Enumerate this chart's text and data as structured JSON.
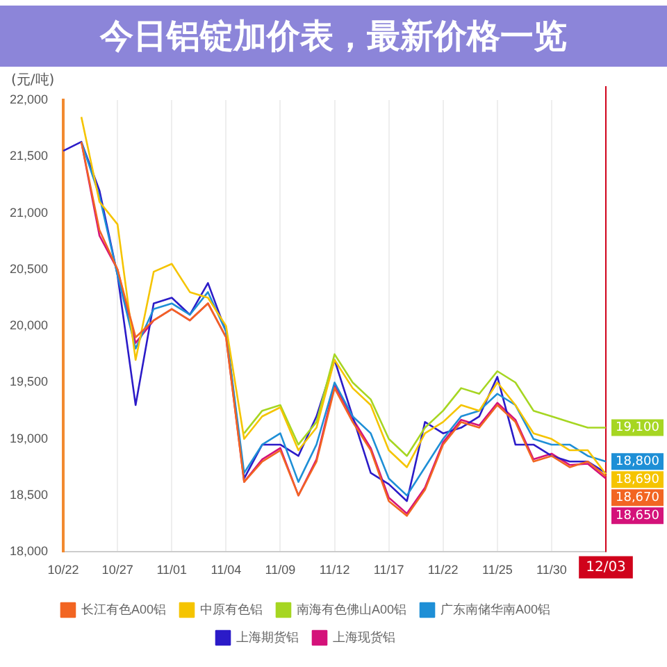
{
  "chart_data": {
    "type": "line",
    "title": "今日铝锭加价表，最新价格一览",
    "ylabel": "(元/吨)",
    "categories": [
      "10/22",
      null,
      null,
      "10/27",
      null,
      null,
      "11/01",
      null,
      null,
      "11/04",
      null,
      null,
      "11/09",
      null,
      null,
      "11/12",
      null,
      null,
      "11/17",
      null,
      null,
      "11/22",
      null,
      null,
      "11/25",
      null,
      null,
      "11/30",
      null,
      null,
      "12/03"
    ],
    "ylim": [
      18000,
      22000
    ],
    "yticks": [
      {
        "value": 18000,
        "label": "18,000"
      },
      {
        "value": 18500,
        "label": "18,500"
      },
      {
        "value": 19000,
        "label": "19,000"
      },
      {
        "value": 19500,
        "label": "19,500"
      },
      {
        "value": 20000,
        "label": "20,000"
      },
      {
        "value": 20500,
        "label": "20,500"
      },
      {
        "value": 21000,
        "label": "21,000"
      },
      {
        "value": 21500,
        "label": "21,500"
      },
      {
        "value": 22000,
        "label": "22,000"
      }
    ],
    "grid": "x",
    "legend": "bottom",
    "marker": "none",
    "line_style": "solid",
    "ref_lines": [
      {
        "axis": "x",
        "value": "12/03",
        "color": "#d0021b"
      }
    ],
    "series": [
      {
        "name": "长江有色A00铝",
        "color": "#f26522",
        "values": [
          null,
          21630,
          20850,
          20500,
          19900,
          20050,
          20150,
          20050,
          20200,
          19900,
          18620,
          18800,
          18900,
          18500,
          18800,
          19450,
          19150,
          18900,
          18450,
          18320,
          18550,
          18950,
          19150,
          19100,
          19300,
          19150,
          18800,
          18850,
          18750,
          18800,
          18670
        ],
        "value_labels": [
          null,
          null,
          null,
          null,
          null,
          null,
          null,
          null,
          null,
          null,
          null,
          null,
          null,
          null,
          null,
          null,
          null,
          null,
          null,
          null,
          null,
          null,
          null,
          null,
          null,
          null,
          null,
          null,
          null,
          null,
          "18,670"
        ]
      },
      {
        "name": "中原有色铝",
        "color": "#f5c400",
        "values": [
          null,
          21850,
          21100,
          20900,
          19700,
          20480,
          20550,
          20300,
          20250,
          20000,
          19000,
          19200,
          19280,
          18900,
          19100,
          19700,
          19450,
          19300,
          18900,
          18750,
          19050,
          19150,
          19300,
          19250,
          19500,
          19300,
          19050,
          19000,
          18900,
          18900,
          18690
        ],
        "value_labels": [
          null,
          null,
          null,
          null,
          null,
          null,
          null,
          null,
          null,
          null,
          null,
          null,
          null,
          null,
          null,
          null,
          null,
          null,
          null,
          null,
          null,
          null,
          null,
          null,
          null,
          null,
          null,
          null,
          null,
          null,
          "18,690"
        ]
      },
      {
        "name": "南海有色佛山A00铝",
        "color": "#a6d622",
        "values": [
          null,
          null,
          null,
          null,
          null,
          null,
          null,
          null,
          null,
          null,
          19050,
          19250,
          19300,
          18950,
          19150,
          19750,
          19500,
          19350,
          19000,
          18850,
          19100,
          19250,
          19450,
          19400,
          19600,
          19500,
          19250,
          19200,
          19150,
          19100,
          19100
        ],
        "value_labels": [
          null,
          null,
          null,
          null,
          null,
          null,
          null,
          null,
          null,
          null,
          null,
          null,
          null,
          null,
          null,
          null,
          null,
          null,
          null,
          null,
          null,
          null,
          null,
          null,
          null,
          null,
          null,
          null,
          null,
          null,
          "19,100"
        ]
      },
      {
        "name": "广东南储华南A00铝",
        "color": "#1e8fd6",
        "values": [
          null,
          21630,
          21150,
          20450,
          19800,
          20150,
          20200,
          20100,
          20300,
          19950,
          18700,
          18950,
          19050,
          18620,
          18950,
          19500,
          19200,
          19050,
          18650,
          18500,
          18750,
          19000,
          19200,
          19250,
          19400,
          19300,
          19000,
          18950,
          18950,
          18850,
          18800
        ],
        "value_labels": [
          null,
          null,
          null,
          null,
          null,
          null,
          null,
          null,
          null,
          null,
          null,
          null,
          null,
          null,
          null,
          null,
          null,
          null,
          null,
          null,
          null,
          null,
          null,
          null,
          null,
          null,
          null,
          null,
          null,
          null,
          "18,800"
        ]
      },
      {
        "name": "上海期货铝",
        "color": "#2b1bc8",
        "values": [
          21550,
          21630,
          21200,
          20450,
          19300,
          20200,
          20250,
          20100,
          20380,
          19950,
          18650,
          18950,
          18950,
          18850,
          19200,
          19700,
          19200,
          18700,
          18600,
          18450,
          19150,
          19050,
          19100,
          19200,
          19550,
          18950,
          18950,
          18850,
          18800,
          18800,
          18700
        ]
      },
      {
        "name": "上海现货铝",
        "color": "#d4127a",
        "values": [
          null,
          21630,
          20800,
          20500,
          19850,
          20050,
          20150,
          20050,
          20200,
          19900,
          18620,
          18820,
          18920,
          18500,
          18820,
          19480,
          19180,
          18920,
          18480,
          18340,
          18570,
          18970,
          19170,
          19120,
          19320,
          19170,
          18820,
          18870,
          18770,
          18780,
          18650
        ],
        "value_labels": [
          null,
          null,
          null,
          null,
          null,
          null,
          null,
          null,
          null,
          null,
          null,
          null,
          null,
          null,
          null,
          null,
          null,
          null,
          null,
          null,
          null,
          null,
          null,
          null,
          null,
          null,
          null,
          null,
          null,
          null,
          "18,650"
        ]
      }
    ]
  }
}
